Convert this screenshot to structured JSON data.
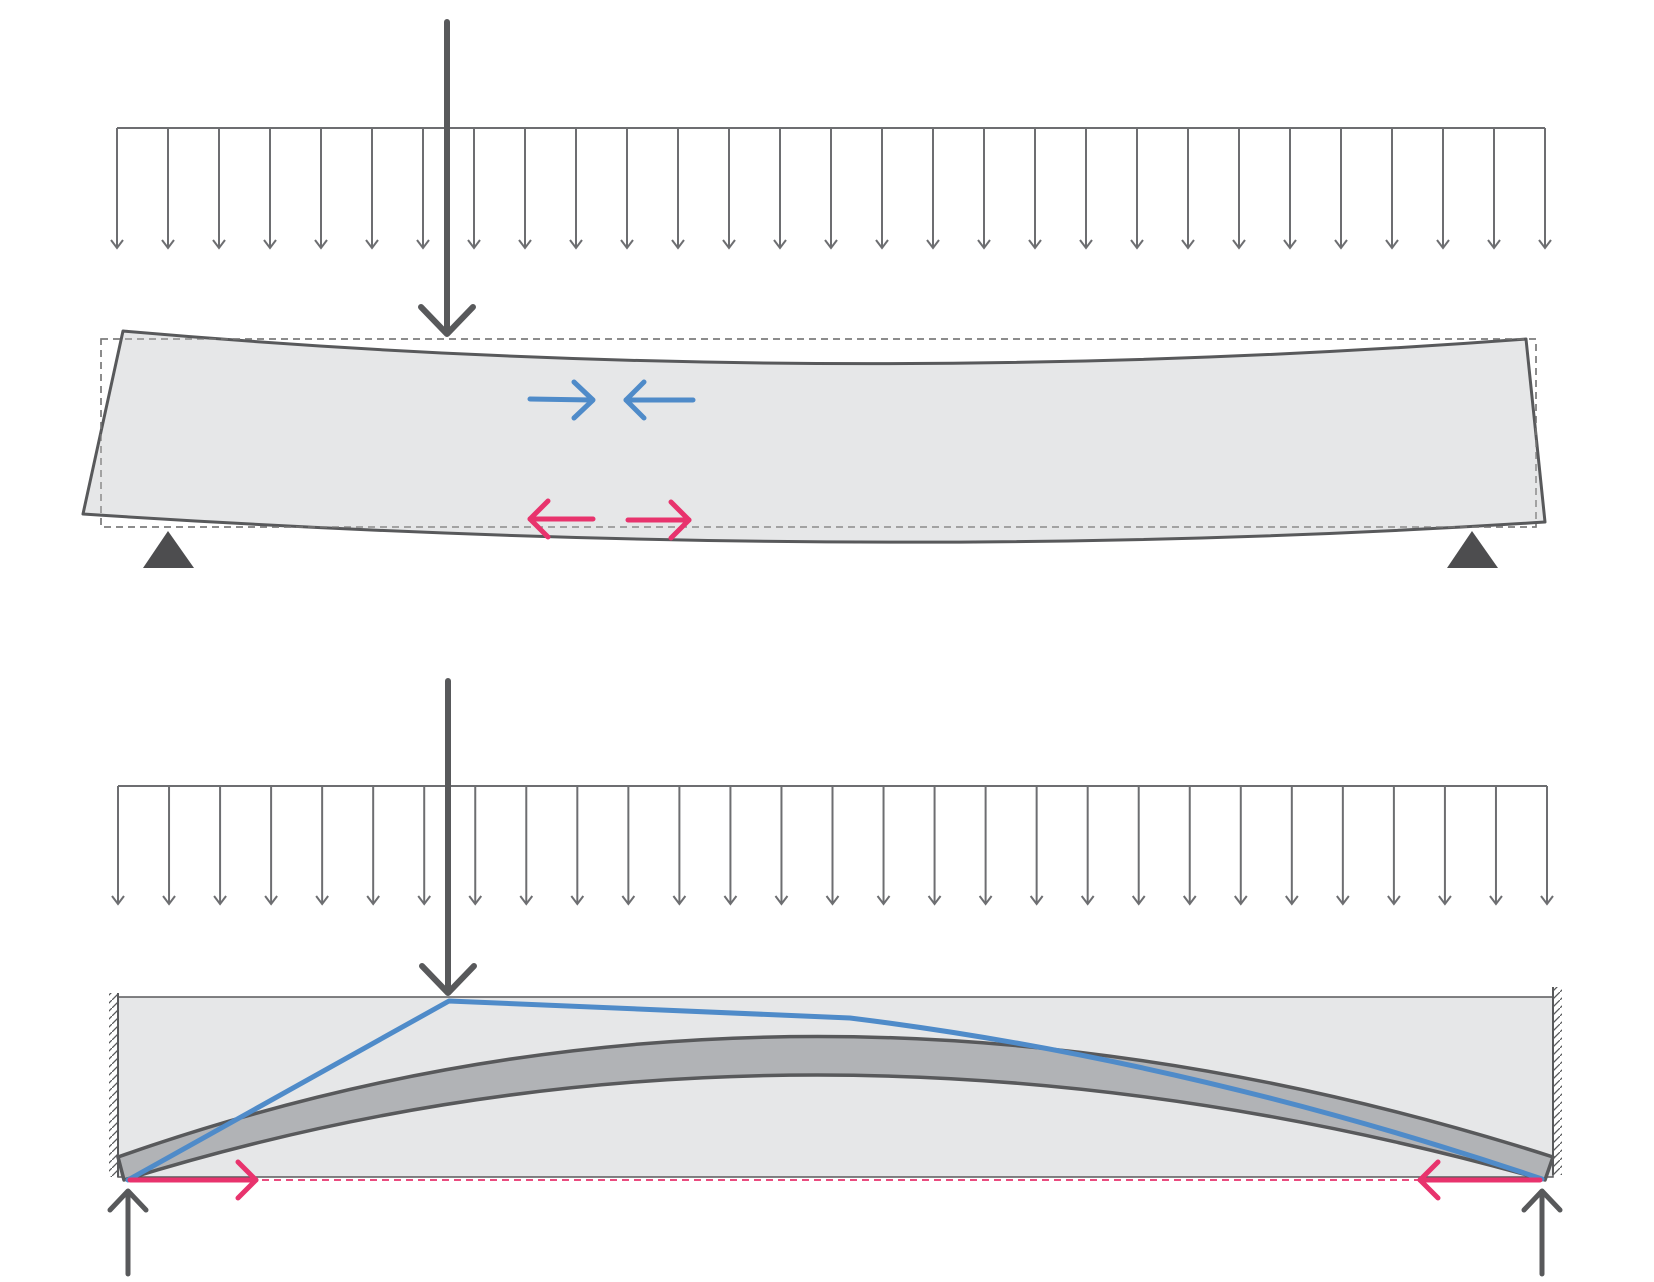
{
  "colors": {
    "background": "#ffffff",
    "outline": "#58595b",
    "load_line": "#6d6e71",
    "beam_fill": "#e6e7e8",
    "arch_fill": "#b1b3b6",
    "compression": "#4f8bc9",
    "tension": "#e8336d",
    "support": "#4d4d4f",
    "original_outline": "#7a7a7a"
  },
  "top_diagram": {
    "uniform_load_arrow_count": 29,
    "point_load": "downward",
    "supports": [
      "pinned",
      "pinned"
    ],
    "compression_arrows": [
      "right",
      "left"
    ],
    "tension_arrows": [
      "left",
      "right"
    ],
    "original_shape": "dashed-rectangle"
  },
  "bottom_diagram": {
    "uniform_load_arrow_count": 29,
    "point_load": "downward",
    "end_walls": [
      "hatched",
      "hatched"
    ],
    "reactions": [
      "upward",
      "upward"
    ],
    "tie": "dashed",
    "tie_arrows": [
      "right",
      "left"
    ],
    "thrust_line": "compression"
  }
}
